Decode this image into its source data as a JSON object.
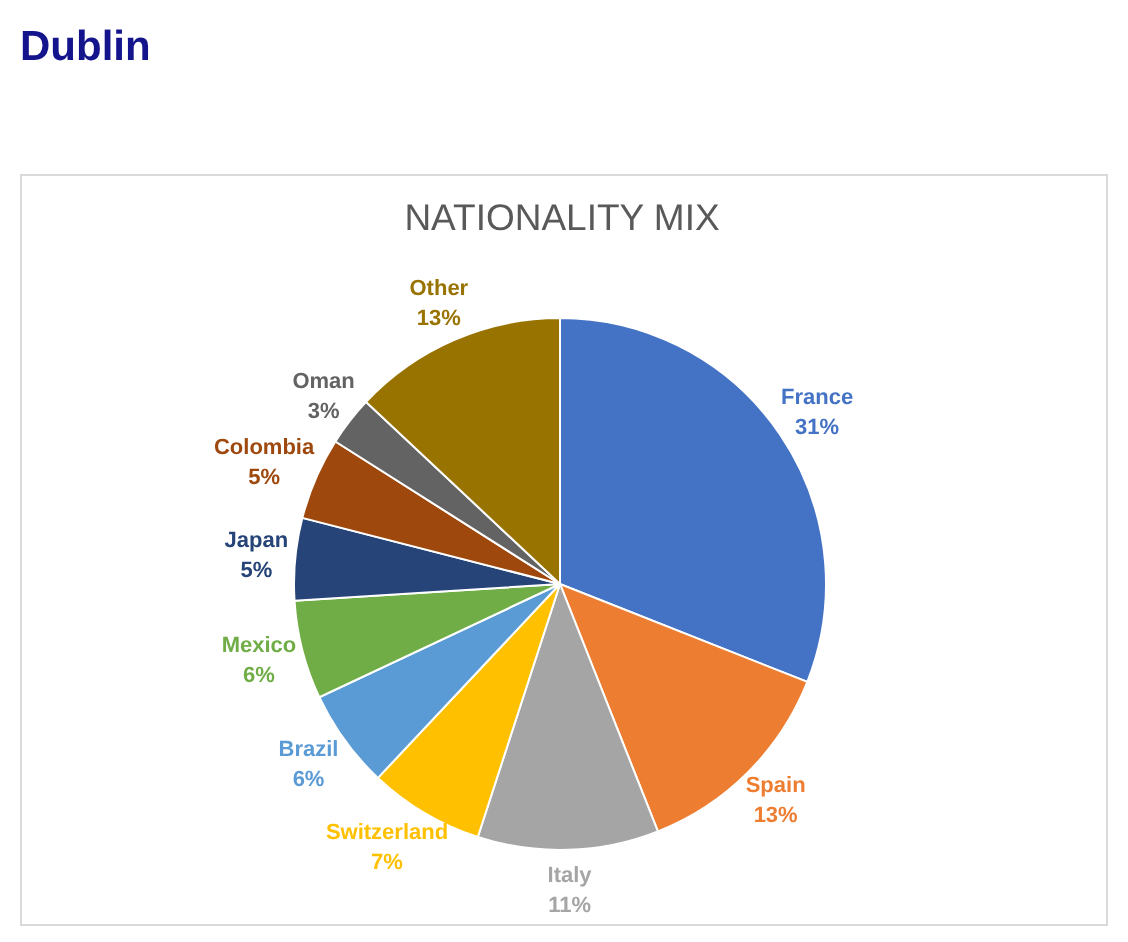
{
  "chart_data": {
    "type": "pie",
    "title": "NATIONALITY MIX",
    "annotations": [
      "Dublin"
    ],
    "categories": [
      "France",
      "Spain",
      "Italy",
      "Switzerland",
      "Brazil",
      "Mexico",
      "Japan",
      "Colombia",
      "Oman",
      "Other"
    ],
    "values": [
      31,
      13,
      11,
      7,
      6,
      6,
      5,
      5,
      3,
      13
    ],
    "colors": [
      "#4472c4",
      "#ed7d31",
      "#a5a5a5",
      "#ffc000",
      "#5b9bd5",
      "#70ad47",
      "#264478",
      "#9e480e",
      "#636363",
      "#997300"
    ],
    "value_labels": [
      "31%",
      "13%",
      "11%",
      "7%",
      "6%",
      "6%",
      "5%",
      "5%",
      "3%",
      "13%"
    ]
  }
}
